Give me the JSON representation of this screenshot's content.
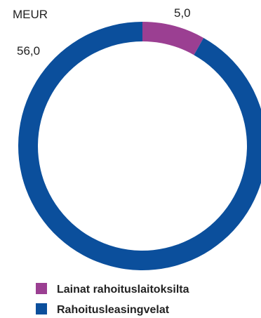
{
  "chart_data": {
    "type": "pie",
    "variant": "donut",
    "unit_label": "MEUR",
    "categories": [
      "Lainat rahoituslaitoksilta",
      "Rahoitusleasingvelat"
    ],
    "values": [
      5.0,
      56.0
    ],
    "value_labels": [
      "5,0",
      "56,0"
    ],
    "colors": [
      "#9b3f92",
      "#0b4f9c"
    ],
    "legend": {
      "position": "bottom",
      "entries": [
        "Lainat rahoituslaitoksilta",
        "Rahoitusleasingvelat"
      ]
    }
  }
}
